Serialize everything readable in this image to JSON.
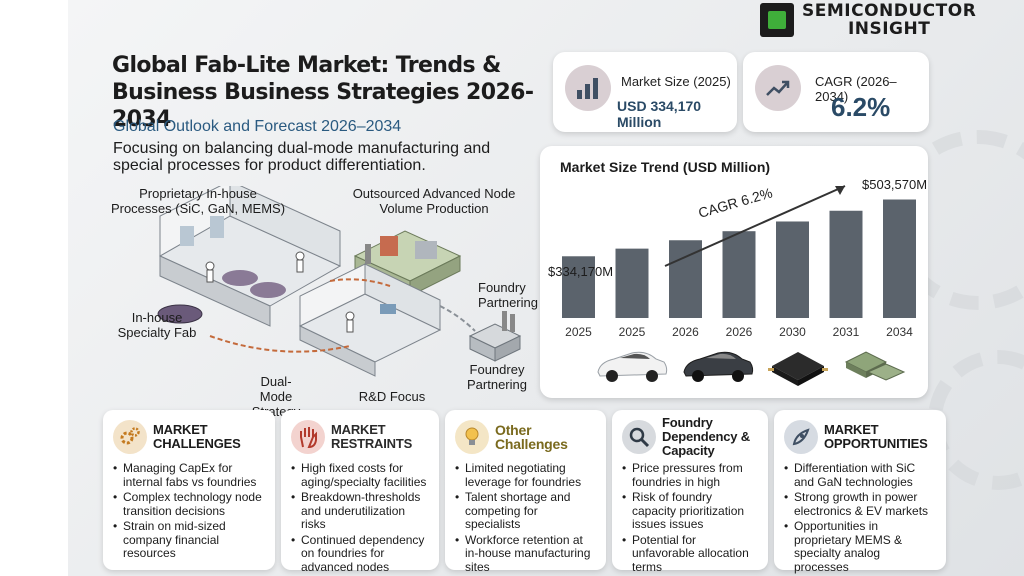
{
  "brand": {
    "line1": "SEMICONDUCTOR",
    "line2": "INSIGHT"
  },
  "header": {
    "title": "Global Fab-Lite Market: Trends & Business Business Strategies 2026-2034",
    "subtitle": "Global Outlook and Forecast 2026–2034",
    "description": "Focusing on balancing dual-mode manufacturing and special processes for product differentiation."
  },
  "kpis": {
    "market_size": {
      "label": "Market Size (2025)",
      "value": "USD 334,170 Million",
      "icon": "bar-chart-icon"
    },
    "cagr": {
      "label": "CAGR (2026–2034)",
      "value": "6.2%",
      "icon": "trend-up-icon"
    }
  },
  "illustration": {
    "labels": {
      "inhouse_processes": "Proprietary In-house Processes (SiC, GaN, MEMS)",
      "outsourced": "Outsourced Advanced Node Volume Production",
      "foundry_partnering": "Foundry Partnering",
      "inhouse_fab": "In-house Specialty Fab",
      "foundry_partnering_2": "Foundrey Partnering",
      "dual_mode": "Dual-Mode Strategy",
      "rnd": "R&D Focus"
    }
  },
  "chart_data": {
    "type": "bar",
    "title": "Market Size Trend (USD Million)",
    "categories": [
      "2025",
      "2025",
      "2026",
      "2026",
      "2030",
      "2031",
      "2034"
    ],
    "values": [
      334170,
      357000,
      382000,
      409000,
      438000,
      470000,
      503570
    ],
    "data_labels": {
      "first": "$334,170M",
      "last": "$503,570M"
    },
    "annotation": "CAGR 6.2%",
    "bar_color": "#5b636c",
    "ylim": [
      150000,
      520000
    ],
    "product_images": [
      "white-ev-car-icon",
      "dark-ev-car-icon",
      "power-module-chip-icon",
      "sensor-chip-icon"
    ]
  },
  "bottom": [
    {
      "title": "MARKET CHALLENGES",
      "icon": "gears-icon",
      "icon_bg": "#f3e3c9",
      "items": [
        "Managing CapEx for internal fabs vs foundries",
        "Complex technology node transition decisions",
        "Strain on mid-sized company financial resources"
      ]
    },
    {
      "title": "MARKET RESTRAINTS",
      "icon": "hand-stop-icon",
      "icon_bg": "#f3d3cf",
      "items": [
        "High fixed costs for aging/specialty facilities",
        "Breakdown-thresholds and underutilization risks",
        "Continued dependency on foundries for advanced nodes"
      ]
    },
    {
      "title": "Other Challenges",
      "icon": "lightbulb-icon",
      "icon_bg": "#f4e6c6",
      "items": [
        "Limited negotiating leverage for foundries",
        "Talent shortage and competing for specialists",
        "Workforce retention at in-house manufacturing sites"
      ]
    },
    {
      "title": "Foundry Dependency & Capacity",
      "icon": "magnifier-icon",
      "icon_bg": "#d7dade",
      "items": [
        "Price pressures from foundries in high",
        "Risk of foundry capacity prioritization issues issues",
        "Potential for unfavorable allocation terms"
      ]
    },
    {
      "title": "MARKET OPPORTUNITIES",
      "icon": "rocket-icon",
      "icon_bg": "#d6dbe2",
      "items": [
        "Differentiation with SiC and GaN technologies",
        "Strong growth in power electronics & EV markets",
        "Opportunities in proprietary MEMS & specialty analog processes"
      ]
    }
  ]
}
